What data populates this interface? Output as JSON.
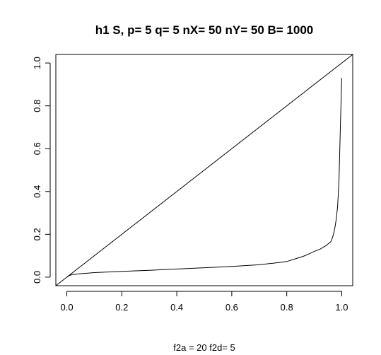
{
  "chart_data": {
    "type": "line",
    "title": "h1 S, p= 5 q= 5 nX= 50 nY= 50 B= 1000",
    "xlabel": "f2a = 20 f2d= 5",
    "ylabel": "",
    "xlim": [
      -0.04,
      1.04
    ],
    "ylim": [
      -0.04,
      1.04
    ],
    "x_ticks": [
      0.0,
      0.2,
      0.4,
      0.6,
      0.8,
      1.0
    ],
    "x_tick_labels": [
      "0.0",
      "0.2",
      "0.4",
      "0.6",
      "0.8",
      "1.0"
    ],
    "y_ticks": [
      0.0,
      0.2,
      0.4,
      0.6,
      0.8,
      1.0
    ],
    "y_tick_labels": [
      "0.0",
      "0.2",
      "0.4",
      "0.6",
      "0.8",
      "1.0"
    ],
    "grid": false,
    "series": [
      {
        "x": [
          0.0,
          0.01,
          0.02,
          0.05,
          0.1,
          0.15,
          0.2,
          0.3,
          0.4,
          0.5,
          0.6,
          0.7,
          0.75,
          0.8,
          0.83,
          0.86,
          0.88,
          0.9,
          0.92,
          0.94,
          0.95,
          0.96,
          0.965,
          0.97,
          0.975,
          0.98,
          0.985,
          0.99,
          0.995,
          1.0
        ],
        "y": [
          0.0,
          0.008,
          0.012,
          0.016,
          0.021,
          0.024,
          0.027,
          0.032,
          0.038,
          0.044,
          0.05,
          0.058,
          0.065,
          0.073,
          0.085,
          0.097,
          0.108,
          0.12,
          0.13,
          0.145,
          0.155,
          0.165,
          0.18,
          0.2,
          0.23,
          0.27,
          0.33,
          0.45,
          0.7,
          0.93
        ],
        "color": "#000000"
      },
      {
        "x": [
          -0.04,
          1.04
        ],
        "y": [
          -0.04,
          1.04
        ],
        "color": "#000000"
      }
    ]
  }
}
